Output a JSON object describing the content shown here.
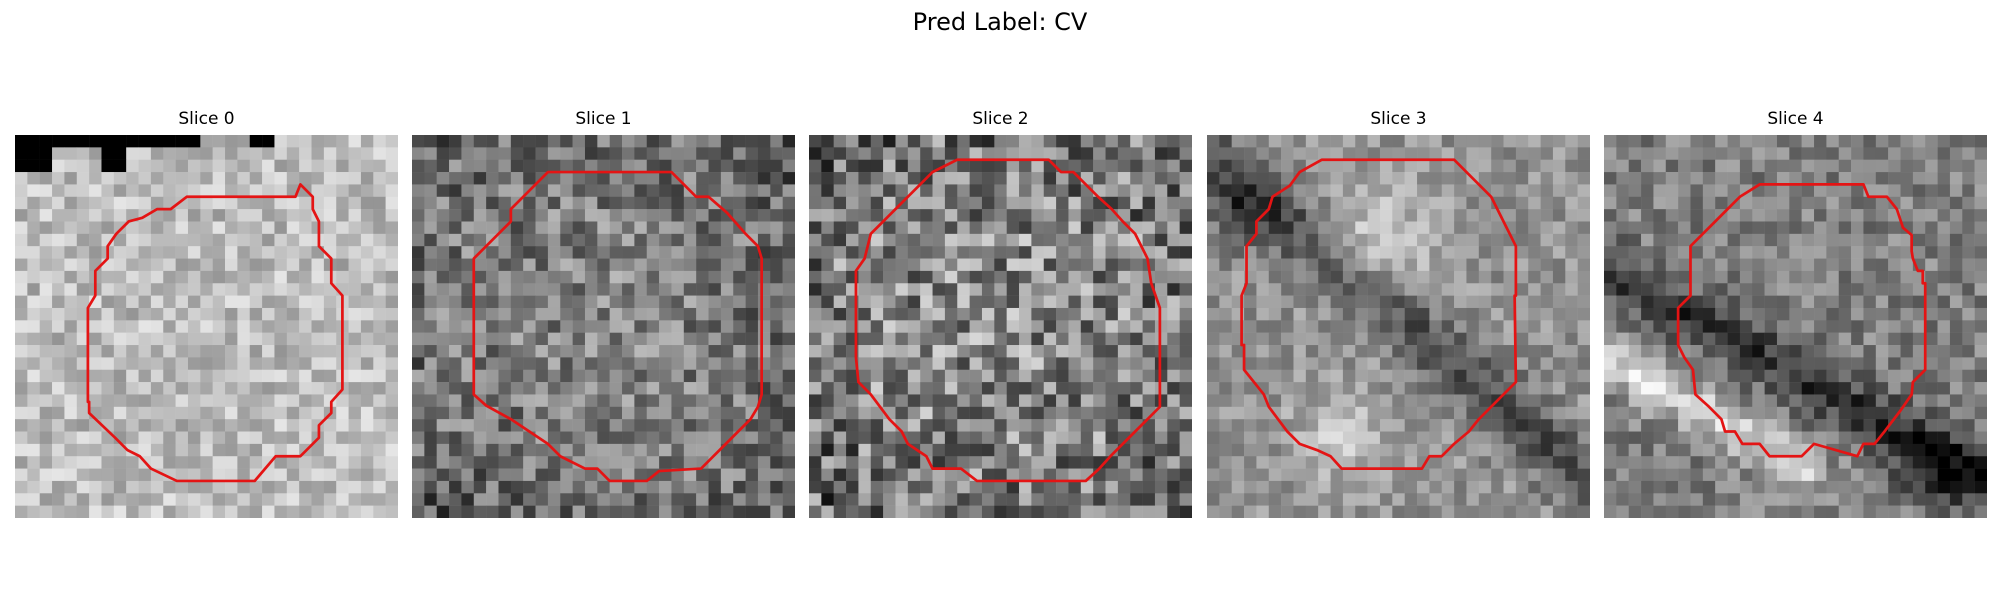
{
  "figure": {
    "title": "Pred Label: CV"
  },
  "panels": [
    {
      "title": "Slice 0",
      "seed": 11,
      "base": 0.74,
      "spread": 0.16,
      "ring": "none",
      "darkTopBand": true
    },
    {
      "title": "Slice 1",
      "seed": 23,
      "base": 0.52,
      "spread": 0.22,
      "ring": "none",
      "darkTopBand": false
    },
    {
      "title": "Slice 2",
      "seed": 37,
      "base": 0.55,
      "spread": 0.3,
      "ring": "none",
      "darkTopBand": false
    },
    {
      "title": "Slice 3",
      "seed": 51,
      "base": 0.58,
      "spread": 0.14,
      "ring": "diagonal-dark",
      "darkTopBand": false
    },
    {
      "title": "Slice 4",
      "seed": 67,
      "base": 0.5,
      "spread": 0.16,
      "ring": "diagonal-band",
      "darkTopBand": false
    }
  ],
  "contour": {
    "color": "#e41414"
  }
}
